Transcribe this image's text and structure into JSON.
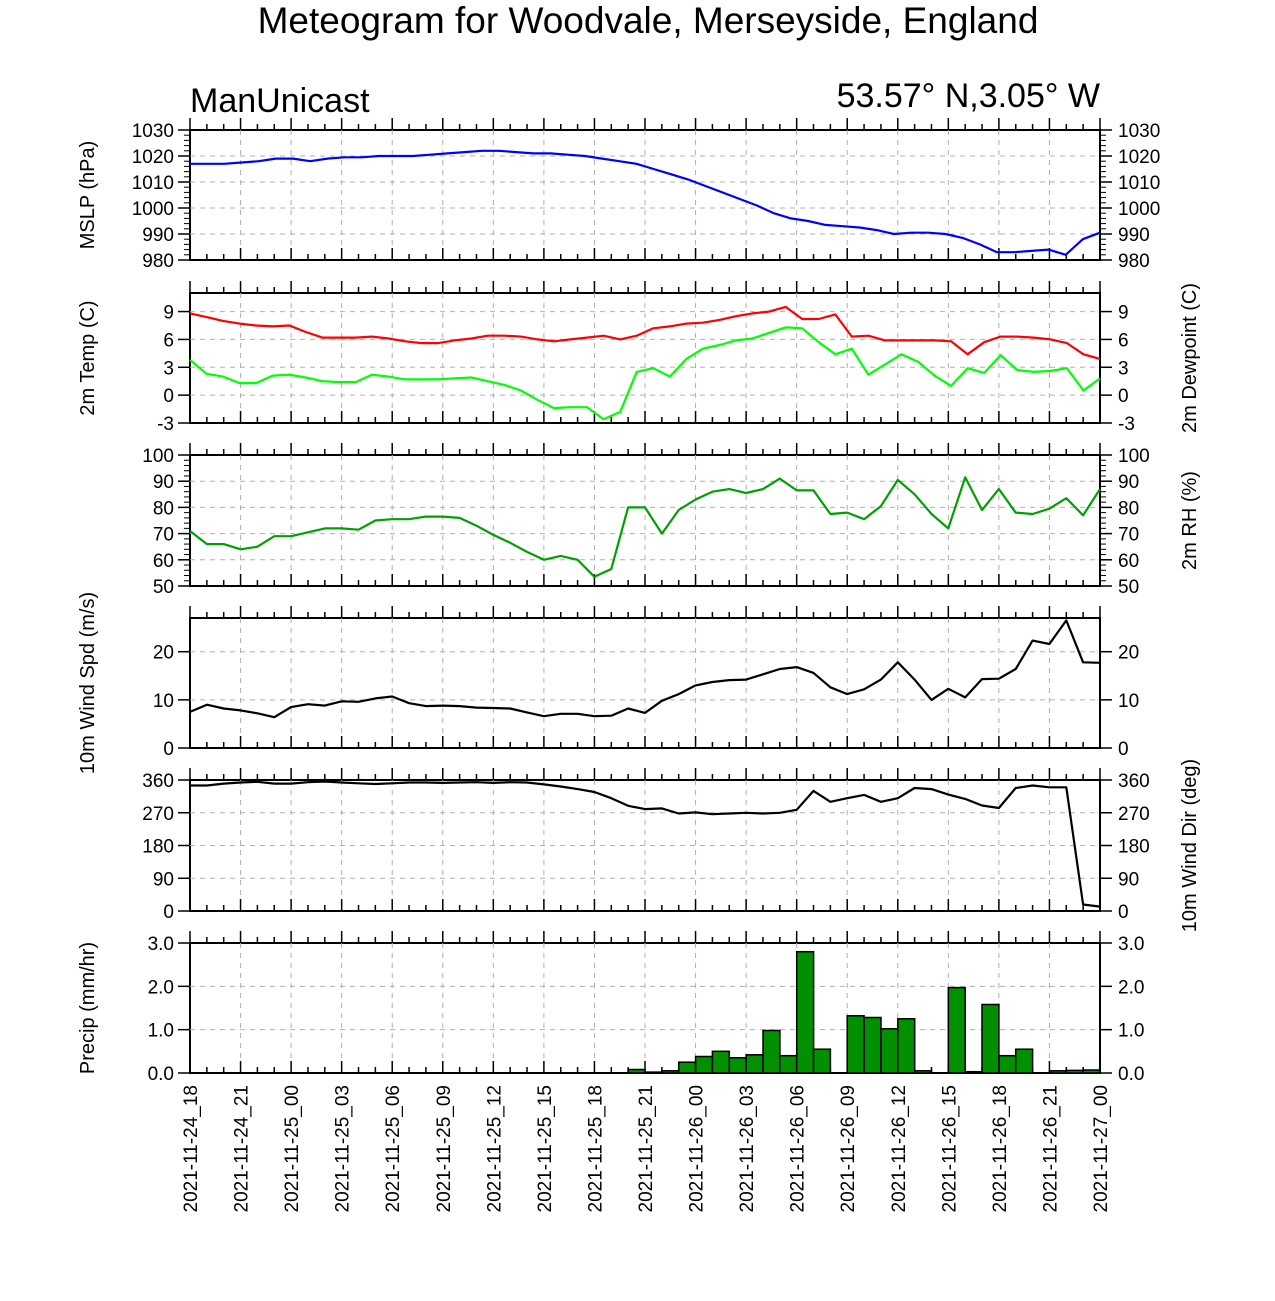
{
  "title": "Meteogram for Woodvale, Merseyside, England",
  "model": "ManUnicast",
  "location": "53.57° N,3.05° W",
  "x_labels": [
    "2021-11-24_18",
    "2021-11-24_21",
    "2021-11-25_00",
    "2021-11-25_03",
    "2021-11-25_06",
    "2021-11-25_09",
    "2021-11-25_12",
    "2021-11-25_15",
    "2021-11-25_18",
    "2021-11-25_21",
    "2021-11-26_00",
    "2021-11-26_03",
    "2021-11-26_06",
    "2021-11-26_09",
    "2021-11-26_12",
    "2021-11-26_15",
    "2021-11-26_18",
    "2021-11-26_21",
    "2021-11-27_00"
  ],
  "chart_data": [
    {
      "type": "line",
      "ylabel": "MSLP (hPa)",
      "ylim": [
        980,
        1030
      ],
      "yticks": [
        980,
        990,
        1000,
        1010,
        1020,
        1030
      ],
      "grid": true,
      "series": [
        {
          "color": "#0000ff",
          "values": [
            1017,
            1017,
            1017,
            1017.5,
            1018,
            1019,
            1019,
            1018,
            1019,
            1019.5,
            1019.5,
            1020,
            1020,
            1020,
            1020.5,
            1021,
            1021.5,
            1022,
            1022,
            1021.5,
            1021,
            1021,
            1020.5,
            1020,
            1019,
            1018,
            1017,
            1015,
            1013,
            1011,
            1008.5,
            1006,
            1003.5,
            1001,
            998,
            996,
            995,
            993.5,
            993,
            992.5,
            991.5,
            990,
            990.5,
            990.5,
            990,
            988.5,
            986,
            983,
            983,
            983.5,
            984,
            982,
            988,
            990.5
          ]
        }
      ]
    },
    {
      "type": "line",
      "ylabel": "2m Temp (C)",
      "ylabel_right": "2m Dewpoint (C)",
      "ylim": [
        -3,
        11
      ],
      "yticks": [
        -3,
        0,
        3,
        6,
        9
      ],
      "grid": true,
      "series": [
        {
          "color": "#ff0000",
          "values": [
            8.8,
            8.4,
            8,
            7.7,
            7.5,
            7.4,
            7.5,
            6.8,
            6.2,
            6.2,
            6.2,
            6.3,
            6.1,
            5.8,
            5.6,
            5.6,
            5.9,
            6.1,
            6.4,
            6.4,
            6.3,
            6.0,
            5.8,
            6.0,
            6.2,
            6.4,
            6.0,
            6.4,
            7.2,
            7.4,
            7.7,
            7.8,
            8.1,
            8.5,
            8.8,
            9,
            9.5,
            8.2,
            8.2,
            8.7,
            6.3,
            6.4,
            5.9,
            5.9,
            5.9,
            5.9,
            5.8,
            4.4,
            5.7,
            6.3,
            6.3,
            6.2,
            6.0,
            5.6,
            4.4,
            3.9
          ]
        },
        {
          "color": "#00ff00",
          "values": [
            3.8,
            2.3,
            2,
            1.3,
            1.3,
            2.1,
            2.2,
            1.9,
            1.5,
            1.4,
            1.4,
            2.2,
            2,
            1.7,
            1.7,
            1.7,
            1.8,
            1.9,
            1.5,
            1.1,
            0.5,
            -0.5,
            -1.4,
            -1.3,
            -1.3,
            -2.6,
            -1.8,
            2.5,
            2.9,
            2,
            3.9,
            5,
            5.4,
            5.9,
            6.1,
            6.7,
            7.3,
            7.2,
            5.7,
            4.4,
            5,
            2.2,
            3.3,
            4.4,
            3.6,
            2.1,
            1.0,
            2.9,
            2.4,
            4.3,
            2.7,
            2.5,
            2.6,
            2.9,
            0.5,
            1.8
          ]
        }
      ]
    },
    {
      "type": "line",
      "ylabel_right": "2m RH (%)",
      "ylim": [
        50,
        100
      ],
      "yticks": [
        50,
        60,
        70,
        80,
        90,
        100
      ],
      "grid": true,
      "series": [
        {
          "color": "#00a000",
          "values": [
            71,
            66,
            66,
            64,
            65,
            69,
            69,
            70.5,
            72,
            72,
            71.5,
            75,
            75.5,
            75.5,
            76.5,
            76.5,
            76,
            73,
            69.5,
            66.5,
            63,
            60,
            61.5,
            60,
            53.5,
            56.5,
            80,
            80,
            70,
            79,
            83,
            86,
            87,
            85.5,
            87,
            91,
            86.5,
            86.5,
            77.5,
            78,
            75.5,
            80.5,
            90.5,
            85,
            77.5,
            72,
            91.5,
            79,
            87,
            78,
            77.5,
            79.5,
            83.5,
            77,
            87
          ]
        }
      ]
    },
    {
      "type": "line",
      "ylabel": "10m Wind Spd (m/s)",
      "ylim": [
        0,
        27
      ],
      "yticks": [
        0,
        10,
        20
      ],
      "grid": true,
      "series": [
        {
          "color": "#000000",
          "values": [
            7.5,
            9,
            8.2,
            7.8,
            7.2,
            6.4,
            8.5,
            9.1,
            8.8,
            9.7,
            9.6,
            10.3,
            10.7,
            9.3,
            8.7,
            8.8,
            8.7,
            8.4,
            8.3,
            8.2,
            7.4,
            6.6,
            7.1,
            7.1,
            6.6,
            6.7,
            8.2,
            7.3,
            9.8,
            11.2,
            13,
            13.7,
            14.1,
            14.2,
            15.3,
            16.4,
            16.8,
            15.6,
            12.6,
            11.2,
            12.2,
            14.2,
            17.8,
            14.2,
            10,
            12.3,
            10.5,
            14.3,
            14.4,
            16.4,
            22.3,
            21.6,
            26.5,
            17.8,
            17.7
          ]
        }
      ]
    },
    {
      "type": "line",
      "ylabel_right": "10m Wind Dir (deg)",
      "ylim": [
        0,
        360
      ],
      "yticks": [
        0,
        90,
        180,
        270,
        360
      ],
      "grid": true,
      "series": [
        {
          "color": "#000000",
          "values": [
            345,
            345,
            350,
            353,
            355,
            350,
            350,
            354,
            356,
            353,
            351,
            349,
            351,
            353,
            353,
            352,
            353,
            354,
            352,
            354,
            353,
            348,
            342,
            335,
            327,
            310,
            289,
            280,
            282,
            268,
            271,
            266,
            268,
            270,
            268,
            270,
            278,
            330,
            300,
            310,
            319,
            300,
            310,
            338,
            335,
            320,
            308,
            290,
            283,
            338,
            345,
            340,
            340,
            18,
            12
          ]
        }
      ]
    },
    {
      "type": "bar",
      "ylabel": "Precip (mm/hr)",
      "ylim": [
        0,
        3
      ],
      "yticks": [
        "0.0",
        "1.0",
        "2.0",
        "3.0"
      ],
      "grid": true,
      "color": "#009000",
      "values": [
        0,
        0,
        0,
        0,
        0,
        0,
        0,
        0,
        0,
        0,
        0,
        0,
        0,
        0,
        0,
        0,
        0,
        0,
        0,
        0,
        0,
        0,
        0,
        0,
        0,
        0,
        0.08,
        0.02,
        0.05,
        0.25,
        0.38,
        0.5,
        0.35,
        0.42,
        0.98,
        0.4,
        2.8,
        0.55,
        0,
        1.32,
        1.28,
        1.02,
        1.25,
        0.05,
        0,
        1.97,
        0.03,
        1.58,
        0.4,
        0.55,
        0,
        0.05,
        0.06,
        0.07,
        0
      ]
    }
  ]
}
